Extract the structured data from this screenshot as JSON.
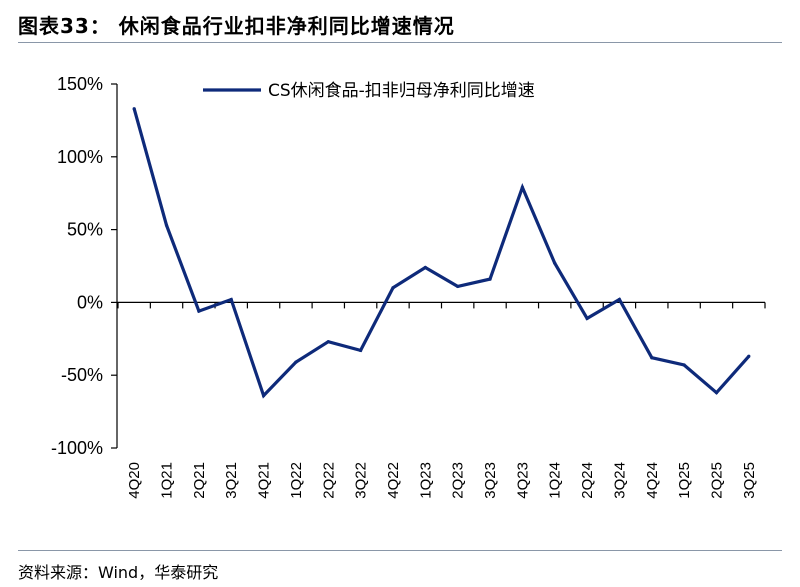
{
  "figure": {
    "title": "图表33：  休闲食品行业扣非净利同比增速情况",
    "source": "资料来源：Wind，华泰研究"
  },
  "colors": {
    "series": "#0e2a7a",
    "axis": "#000000",
    "rule": "#8a97a8"
  },
  "chart_data": {
    "type": "line",
    "title": "",
    "xlabel": "",
    "ylabel": "",
    "categories": [
      "4Q20",
      "1Q21",
      "2Q21",
      "3Q21",
      "4Q21",
      "1Q22",
      "2Q22",
      "3Q22",
      "4Q22",
      "1Q23",
      "2Q23",
      "3Q23",
      "4Q23",
      "1Q24",
      "2Q24",
      "3Q24",
      "4Q24",
      "1Q25",
      "2Q25",
      "3Q25"
    ],
    "series": [
      {
        "name": "CS休闲食品-扣非归母净利同比增速",
        "values": [
          133,
          53,
          -6,
          2,
          -64,
          -41,
          -27,
          -33,
          10,
          24,
          11,
          16,
          79,
          27,
          -11,
          2,
          -38,
          -43,
          -62,
          -37
        ]
      }
    ],
    "ylim": [
      -100,
      150
    ],
    "yticks": [
      150,
      100,
      50,
      0,
      -50,
      -100
    ],
    "ytick_labels": [
      "150%",
      "100%",
      "50%",
      "0%",
      "-50%",
      "-100%"
    ],
    "grid": false,
    "legend_position": "top"
  }
}
